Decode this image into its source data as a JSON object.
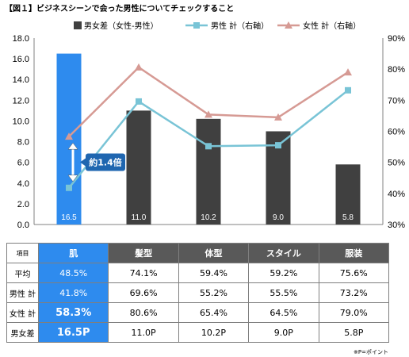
{
  "figure_title": "【図１】ビジネスシーンで会った男性についてチェックすること",
  "note": "※P=ポイント",
  "chart_data": {
    "type": "bar+line",
    "categories": [
      "肌",
      "髪型",
      "体型",
      "スタイル",
      "服装"
    ],
    "series": [
      {
        "name": "男女差（女性-男性）",
        "type": "bar",
        "axis": "left",
        "values": [
          16.5,
          11.0,
          10.2,
          9.0,
          5.8
        ],
        "labels": [
          "16.5",
          "11.0",
          "10.2",
          "9.0",
          "5.8"
        ]
      },
      {
        "name": "男性 計（右軸）",
        "type": "line",
        "axis": "right",
        "values": [
          41.8,
          69.6,
          55.2,
          55.5,
          73.2
        ]
      },
      {
        "name": "女性 計（右軸）",
        "type": "line",
        "axis": "right",
        "values": [
          58.3,
          80.6,
          65.4,
          64.5,
          79.0
        ]
      }
    ],
    "y_left": {
      "min": 0,
      "max": 18,
      "step": 2,
      "tick_labels": [
        "0.0",
        "2.0",
        "4.0",
        "6.0",
        "8.0",
        "10.0",
        "12.0",
        "14.0",
        "16.0",
        "18.0"
      ]
    },
    "y_right": {
      "min": 30,
      "max": 90,
      "step": 10,
      "tick_labels": [
        "30%",
        "40%",
        "50%",
        "60%",
        "70%",
        "80%",
        "90%"
      ]
    },
    "annotation": "約1.4倍",
    "colors": {
      "bar": "#404040",
      "bar_highlight": "#2E8BEE",
      "male_line": "#79C4D6",
      "male_marker": "#79C4D6",
      "female_line": "#D69A94",
      "female_marker": "#D69A94",
      "annotation": "#1F66B0"
    },
    "grid": false,
    "legend_position": "top"
  },
  "table": {
    "corner": "項目",
    "headers": [
      "肌",
      "髪型",
      "体型",
      "スタイル",
      "服装"
    ],
    "rows": [
      {
        "label": "平均",
        "cells": [
          "48.5%",
          "74.1%",
          "59.4%",
          "59.2%",
          "75.6%"
        ]
      },
      {
        "label": "男性 計",
        "cells": [
          "41.8%",
          "69.6%",
          "55.2%",
          "55.5%",
          "73.2%"
        ]
      },
      {
        "label": "女性 計",
        "cells": [
          "58.3%",
          "80.6%",
          "65.4%",
          "64.5%",
          "79.0%"
        ]
      },
      {
        "label": "男女差",
        "cells": [
          "16.5P",
          "11.0P",
          "10.2P",
          "9.0P",
          "5.8P"
        ]
      }
    ]
  }
}
